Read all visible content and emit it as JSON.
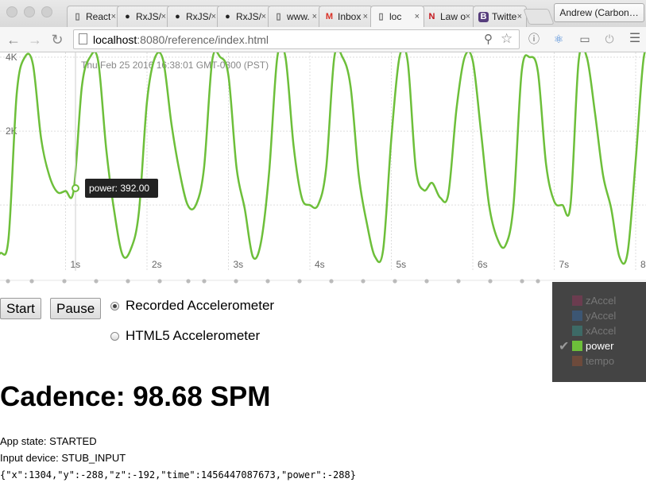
{
  "browser": {
    "tabs": [
      {
        "label": "React",
        "icon": "page-icon"
      },
      {
        "label": "RxJS/",
        "icon": "github-icon"
      },
      {
        "label": "RxJS/",
        "icon": "github-icon"
      },
      {
        "label": "RxJS/",
        "icon": "github-icon"
      },
      {
        "label": "www.",
        "icon": "page-icon"
      },
      {
        "label": "Inbox",
        "icon": "gmail-icon"
      },
      {
        "label": "loc",
        "icon": "page-icon"
      },
      {
        "label": "Law o",
        "icon": "netflix-icon"
      },
      {
        "label": "Twitte",
        "icon": "bootstrap-icon"
      }
    ],
    "active_tab": 6,
    "profile": "Andrew (Carbon…",
    "url_host": "localhost",
    "url_path": ":8080/reference/index.html"
  },
  "chart": {
    "timestamp": "Thu Feb 25 2016 16:38:01 GMT-0800 (PST)",
    "y_ticks": [
      "4K",
      "2K"
    ],
    "x_ticks": [
      "1s",
      "2s",
      "3s",
      "4s",
      "5s",
      "6s",
      "7s",
      "8s"
    ],
    "tooltip": "power: 392.00",
    "line_color": "#6dbf3a"
  },
  "chart_data": {
    "type": "line",
    "title": "",
    "xlabel": "",
    "ylabel": "",
    "series": [
      {
        "name": "power",
        "x": [
          0.0,
          0.1,
          0.2,
          0.3,
          0.4,
          0.5,
          0.6,
          0.7,
          0.8,
          0.9,
          1.0,
          1.1,
          1.2,
          1.3,
          1.4,
          1.5,
          1.6,
          1.7,
          1.8,
          1.9,
          2.0,
          2.1,
          2.2,
          2.3,
          2.4,
          2.5,
          2.6,
          2.7,
          2.8,
          2.9,
          3.0,
          3.1,
          3.2,
          3.3,
          3.4,
          3.5,
          3.6,
          3.7,
          3.8,
          3.9,
          4.0,
          4.1,
          4.2,
          4.3,
          4.4,
          4.5,
          4.6,
          4.7,
          4.8,
          4.9,
          5.0,
          5.1,
          5.2,
          5.3,
          5.4,
          5.5,
          5.6,
          5.7,
          5.8,
          5.9,
          6.0,
          6.1,
          6.2,
          6.3,
          6.4,
          6.5,
          6.6,
          6.7,
          6.8,
          6.9,
          7.0,
          7.1,
          7.2,
          7.3,
          7.4,
          7.5,
          7.6,
          7.7,
          7.8,
          7.9,
          8.0,
          8.1,
          8.2,
          8.3,
          8.4
        ],
        "y": [
          -150,
          -1300,
          -1300,
          -900,
          3000,
          4000,
          3800,
          1800,
          800,
          350,
          380,
          400,
          3200,
          4000,
          3900,
          1500,
          -200,
          -1350,
          -1200,
          -200,
          2800,
          4000,
          3900,
          2200,
          900,
          0,
          0,
          1000,
          3900,
          4000,
          3500,
          1000,
          -100,
          -1400,
          -1000,
          900,
          4000,
          4000,
          1600,
          200,
          0,
          0,
          1000,
          4000,
          4000,
          3200,
          800,
          -500,
          -1400,
          -1200,
          1800,
          4000,
          3900,
          1000,
          400,
          600,
          200,
          300,
          2600,
          4000,
          3900,
          2000,
          0,
          -900,
          -1100,
          0,
          3600,
          4000,
          3600,
          1100,
          100,
          0,
          0,
          3900,
          4000,
          2500,
          800,
          -100,
          -1400,
          -1300,
          1200,
          4000,
          4000,
          2000,
          -1400
        ]
      }
    ],
    "x_tick_labels": [
      "1s",
      "2s",
      "3s",
      "4s",
      "5s",
      "6s",
      "7s",
      "8s"
    ],
    "y_tick_labels": [
      "4K",
      "2K"
    ],
    "ylim": [
      -1500,
      4000
    ],
    "grid": true,
    "legend_position": "bottom-right"
  },
  "controls": {
    "start_label": "Start",
    "pause_label": "Pause",
    "radio_recorded": "Recorded Accelerometer",
    "radio_html5": "HTML5 Accelerometer",
    "selected_source": "Recorded Accelerometer"
  },
  "legend": {
    "items": [
      {
        "label": "zAccel",
        "color": "#6b3c4f",
        "enabled": false
      },
      {
        "label": "yAccel",
        "color": "#3c5673",
        "enabled": false
      },
      {
        "label": "xAccel",
        "color": "#3d6a66",
        "enabled": false
      },
      {
        "label": "power",
        "color": "#6dbf3a",
        "enabled": true
      },
      {
        "label": "tempo",
        "color": "#6d4a3b",
        "enabled": false
      }
    ]
  },
  "status": {
    "cadence": "Cadence: 98.68 SPM",
    "app_state": "App state: STARTED",
    "input_device": "Input device: STUB_INPUT",
    "json": "{\"x\":1304,\"y\":-288,\"z\":-192,\"time\":1456447087673,\"power\":-288}"
  }
}
